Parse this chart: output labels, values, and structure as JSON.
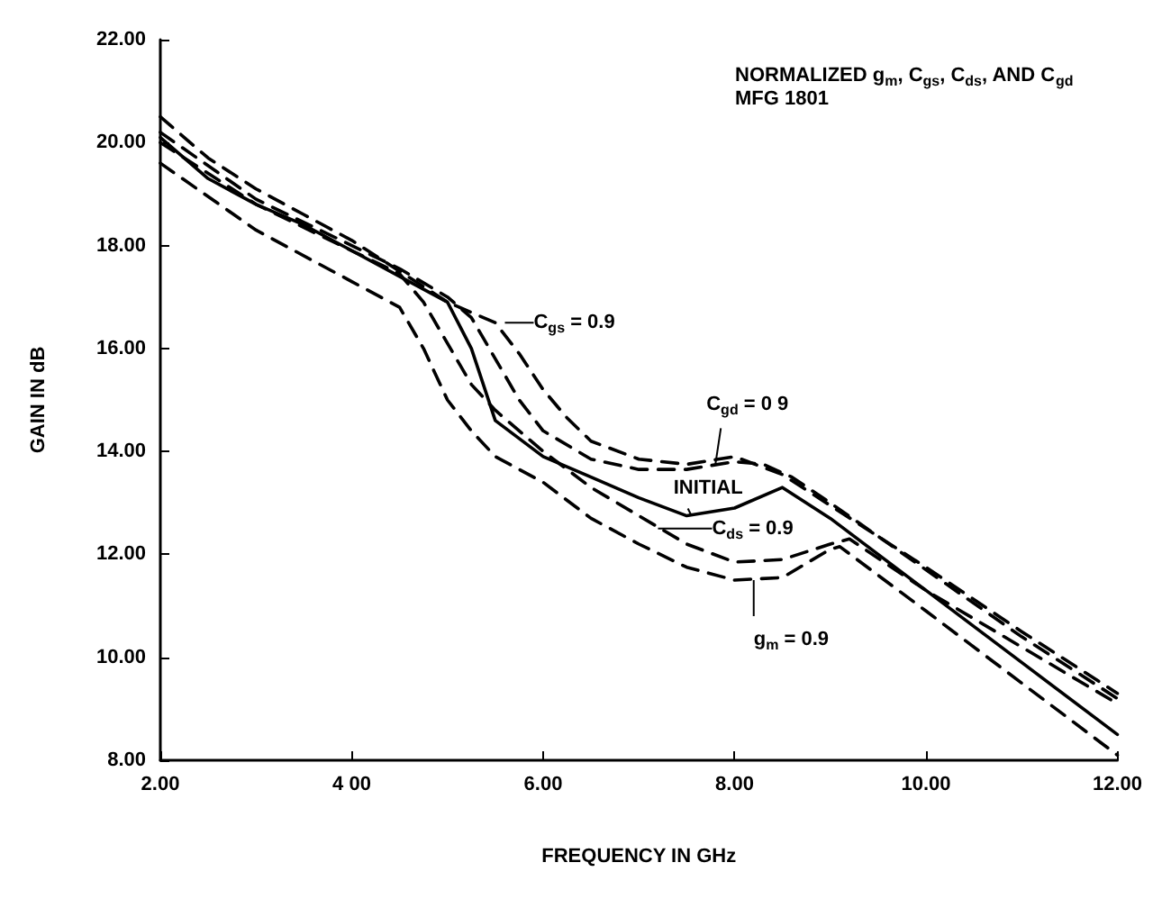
{
  "chart_data": {
    "type": "line",
    "title": "NORMALIZED g$_{m}$, C$_{gs}$, C$_{ds}$, AND C$_{gd}$",
    "subtitle": "MFG 1801",
    "xlabel": "FREQUENCY IN GHz",
    "ylabel": "GAIN IN dB",
    "xlim": [
      2,
      12
    ],
    "xticks": [
      {
        "value": 2,
        "label": "2.00"
      },
      {
        "value": 4,
        "label": "4 00"
      },
      {
        "value": 6,
        "label": "6.00"
      },
      {
        "value": 8,
        "label": "8.00"
      },
      {
        "value": 10,
        "label": "10.00"
      },
      {
        "value": 12,
        "label": "12.00"
      }
    ],
    "ylim": [
      8,
      22
    ],
    "yticks": [
      {
        "value": 8,
        "label": "8.00"
      },
      {
        "value": 10,
        "label": "10.00"
      },
      {
        "value": 12,
        "label": "12.00"
      },
      {
        "value": 14,
        "label": "14.00"
      },
      {
        "value": 16,
        "label": "16.00"
      },
      {
        "value": 18,
        "label": "18.00"
      },
      {
        "value": 20,
        "label": "20.00"
      },
      {
        "value": 22,
        "label": "22.00"
      }
    ],
    "grid": false,
    "marker": "none",
    "series": [
      {
        "color": "#000000",
        "line_style": "solid",
        "x": [
          2,
          2.5,
          3,
          3.5,
          4,
          4.5,
          5,
          5.25,
          5.5,
          6,
          6.5,
          7,
          7.5,
          8,
          8.5,
          9,
          10,
          11,
          12
        ],
        "values": [
          20.1,
          19.3,
          18.8,
          18.4,
          17.9,
          17.4,
          16.9,
          16.0,
          14.6,
          13.9,
          13.5,
          13.1,
          12.75,
          12.9,
          13.3,
          12.7,
          11.3,
          9.9,
          8.5
        ]
      },
      {
        "color": "#000000",
        "line_style": "dashed",
        "x": [
          2,
          2.5,
          3,
          3.5,
          4,
          4.5,
          5,
          5.5,
          5.75,
          6,
          6.25,
          6.5,
          7,
          7.5,
          8,
          8.5,
          9,
          10,
          11,
          12
        ],
        "values": [
          20.5,
          19.7,
          19.1,
          18.6,
          18.1,
          17.5,
          16.9,
          16.5,
          15.9,
          15.2,
          14.65,
          14.2,
          13.85,
          13.75,
          13.9,
          13.55,
          12.95,
          11.75,
          10.5,
          9.3
        ]
      },
      {
        "color": "#000000",
        "line_style": "dashed",
        "x": [
          2,
          3,
          4,
          4.5,
          5,
          5.25,
          5.5,
          5.75,
          6,
          6.5,
          7,
          7.5,
          8,
          8.3,
          8.6,
          9,
          10,
          11,
          12
        ],
        "values": [
          20.2,
          18.9,
          18.0,
          17.55,
          17.0,
          16.6,
          15.8,
          15.0,
          14.4,
          13.85,
          13.65,
          13.65,
          13.8,
          13.75,
          13.5,
          13.0,
          11.7,
          10.4,
          9.2
        ]
      },
      {
        "color": "#000000",
        "line_style": "dashed",
        "x": [
          2,
          3,
          4,
          4.5,
          4.75,
          5,
          5.25,
          5.5,
          6,
          6.5,
          7,
          7.5,
          8,
          8.5,
          9,
          9.2,
          10,
          11,
          12
        ],
        "values": [
          20.0,
          18.8,
          17.9,
          17.45,
          16.9,
          16.1,
          15.3,
          14.8,
          14.0,
          13.3,
          12.75,
          12.2,
          11.85,
          11.9,
          12.2,
          12.3,
          11.3,
          10.2,
          9.1
        ]
      },
      {
        "color": "#000000",
        "line_style": "dashed",
        "x": [
          2,
          3,
          4,
          4.5,
          4.75,
          5,
          5.25,
          5.5,
          6,
          6.5,
          7,
          7.5,
          8,
          8.5,
          9,
          9.1,
          10,
          11,
          12
        ],
        "values": [
          19.6,
          18.3,
          17.3,
          16.8,
          16.0,
          15.0,
          14.4,
          13.9,
          13.4,
          12.7,
          12.2,
          11.75,
          11.5,
          11.55,
          12.1,
          12.15,
          10.9,
          9.5,
          8.1
        ]
      }
    ],
    "annotations": [
      {
        "text": "C$_{gs}$ = 0.9",
        "x": 5.6,
        "y": 16.5
      },
      {
        "text": "C$_{gd}$ = 0 9",
        "x": 7.8,
        "y": 13.75
      },
      {
        "text": "INITIAL",
        "x": 7.55,
        "y": 12.75
      },
      {
        "text": "C$_{ds}$ = 0.9",
        "x": 7.2,
        "y": 12.5
      },
      {
        "text": "g$_{m}$ = 0.9",
        "x": 8.2,
        "y": 11.5
      }
    ]
  }
}
